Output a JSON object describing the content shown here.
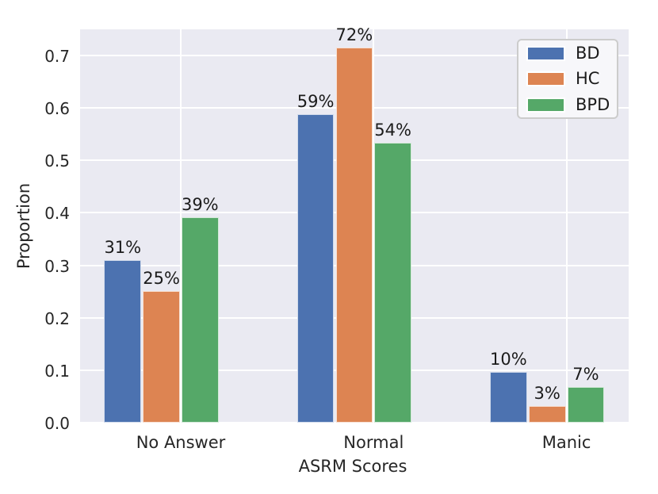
{
  "chart_data": {
    "type": "bar",
    "title": "",
    "xlabel": "ASRM Scores",
    "ylabel": "Proportion",
    "categories": [
      "No Answer",
      "Normal",
      "Manic"
    ],
    "series": [
      {
        "name": "BD",
        "color": "#4C72B0",
        "values": [
          0.31,
          0.588,
          0.097
        ],
        "bar_labels": [
          "31%",
          "59%",
          "10%"
        ]
      },
      {
        "name": "HC",
        "color": "#DD8452",
        "values": [
          0.251,
          0.715,
          0.031
        ],
        "bar_labels": [
          "25%",
          "72%",
          "3%"
        ]
      },
      {
        "name": "BPD",
        "color": "#55A868",
        "values": [
          0.392,
          0.534,
          0.068
        ],
        "bar_labels": [
          "39%",
          "54%",
          "7%"
        ]
      }
    ],
    "yticks": [
      "0.0",
      "0.1",
      "0.2",
      "0.3",
      "0.4",
      "0.5",
      "0.6",
      "0.7"
    ],
    "ylim": [
      0,
      0.75
    ],
    "grid": true,
    "legend_position": "upper right",
    "background_color": "#EAEAF2",
    "grid_color": "#FFFFFF",
    "text_color": "#262626"
  }
}
